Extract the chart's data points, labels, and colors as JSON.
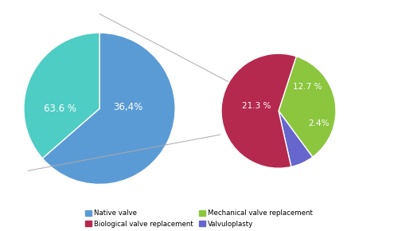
{
  "left_pie": {
    "values": [
      63.6,
      36.4
    ],
    "colors": [
      "#5B9BD5",
      "#4ECDC4"
    ],
    "label_63": "63.6 %",
    "label_36": "36,4%"
  },
  "right_pie": {
    "values": [
      58.52,
      34.89,
      6.59
    ],
    "colors": [
      "#B5294E",
      "#8CC63F",
      "#6666CC"
    ],
    "label_bio": "21.3 %",
    "label_mech": "12.7 %",
    "label_valv": "2.4%"
  },
  "legend_items": [
    {
      "label": "Native valve",
      "color": "#5B9BD5"
    },
    {
      "label": "Biological valve replacement",
      "color": "#B5294E"
    },
    {
      "label": "Mechanical valve replacement",
      "color": "#8CC63F"
    },
    {
      "label": "Valvuloplasty",
      "color": "#6666CC"
    }
  ]
}
